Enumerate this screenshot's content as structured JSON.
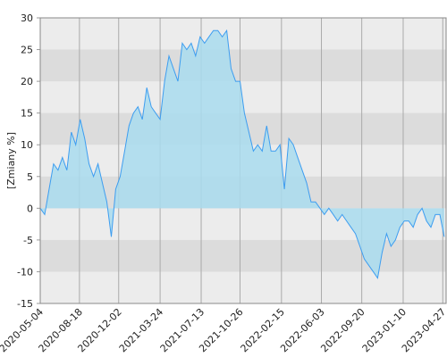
{
  "chart_data": {
    "type": "area",
    "y_label": "[Zmiany %]",
    "x": [
      "2020-05-04",
      "2020-05-16",
      "2020-05-28",
      "2020-06-09",
      "2020-06-21",
      "2020-07-03",
      "2020-07-15",
      "2020-07-27",
      "2020-08-08",
      "2020-08-20",
      "2020-09-01",
      "2020-09-13",
      "2020-09-25",
      "2020-10-07",
      "2020-10-19",
      "2020-10-31",
      "2020-11-12",
      "2020-11-24",
      "2020-12-06",
      "2020-12-18",
      "2020-12-30",
      "2021-01-11",
      "2021-01-23",
      "2021-02-04",
      "2021-02-16",
      "2021-02-28",
      "2021-03-12",
      "2021-03-24",
      "2021-04-05",
      "2021-04-17",
      "2021-04-29",
      "2021-05-11",
      "2021-05-23",
      "2021-06-04",
      "2021-06-16",
      "2021-06-28",
      "2021-07-10",
      "2021-07-22",
      "2021-08-03",
      "2021-08-15",
      "2021-08-27",
      "2021-09-08",
      "2021-09-20",
      "2021-10-02",
      "2021-10-14",
      "2021-10-26",
      "2021-11-07",
      "2021-11-19",
      "2021-12-01",
      "2021-12-13",
      "2021-12-25",
      "2022-01-06",
      "2022-01-18",
      "2022-01-30",
      "2022-02-11",
      "2022-02-23",
      "2022-03-07",
      "2022-03-19",
      "2022-03-31",
      "2022-04-12",
      "2022-04-24",
      "2022-05-06",
      "2022-05-18",
      "2022-05-30",
      "2022-06-11",
      "2022-06-23",
      "2022-07-05",
      "2022-07-17",
      "2022-07-29",
      "2022-08-10",
      "2022-08-22",
      "2022-09-03",
      "2022-09-15",
      "2022-09-27",
      "2022-10-09",
      "2022-10-21",
      "2022-11-02",
      "2022-11-14",
      "2022-11-26",
      "2022-12-08",
      "2022-12-20",
      "2023-01-01",
      "2023-01-13",
      "2023-01-25",
      "2023-02-06",
      "2023-02-18",
      "2023-03-02",
      "2023-03-14",
      "2023-03-26",
      "2023-04-07",
      "2023-04-19",
      "2023-05-01"
    ],
    "series": [
      {
        "color": "#3d9df0",
        "fill": "#a9dcef",
        "values": [
          0,
          -1,
          3,
          7,
          6,
          8,
          6,
          12,
          10,
          14,
          11,
          7,
          5,
          7,
          4,
          1,
          -4.5,
          3,
          5,
          9,
          13,
          15,
          16,
          14,
          19,
          16,
          15,
          14,
          20,
          24,
          22,
          20,
          26,
          25,
          26,
          24,
          27,
          26,
          27,
          28,
          28,
          27,
          28,
          22,
          20,
          20,
          15,
          12,
          9,
          10,
          9,
          13,
          9,
          9,
          10,
          3,
          11,
          10,
          8,
          6,
          4,
          1,
          1,
          0,
          -1,
          0,
          -1,
          -2,
          -1,
          -2,
          -3,
          -4,
          -6,
          -8,
          -9,
          -10,
          -11,
          -7,
          -4,
          -6,
          -5,
          -3,
          -2,
          -2,
          -3,
          -1,
          0,
          -2,
          -3,
          -1,
          -1,
          -4.5
        ]
      }
    ],
    "xlim": [
      "2020-05-04",
      "2023-05-06"
    ],
    "xticks": [
      "2020-05-04",
      "2020-08-18",
      "2020-12-02",
      "2021-03-24",
      "2021-07-13",
      "2021-10-26",
      "2022-02-15",
      "2022-06-03",
      "2022-09-20",
      "2023-01-10",
      "2023-04-27"
    ],
    "ylim": [
      -15,
      30
    ],
    "yticks": [
      -15,
      -10,
      -5,
      0,
      5,
      10,
      15,
      20,
      25,
      30
    ],
    "grid": true
  }
}
